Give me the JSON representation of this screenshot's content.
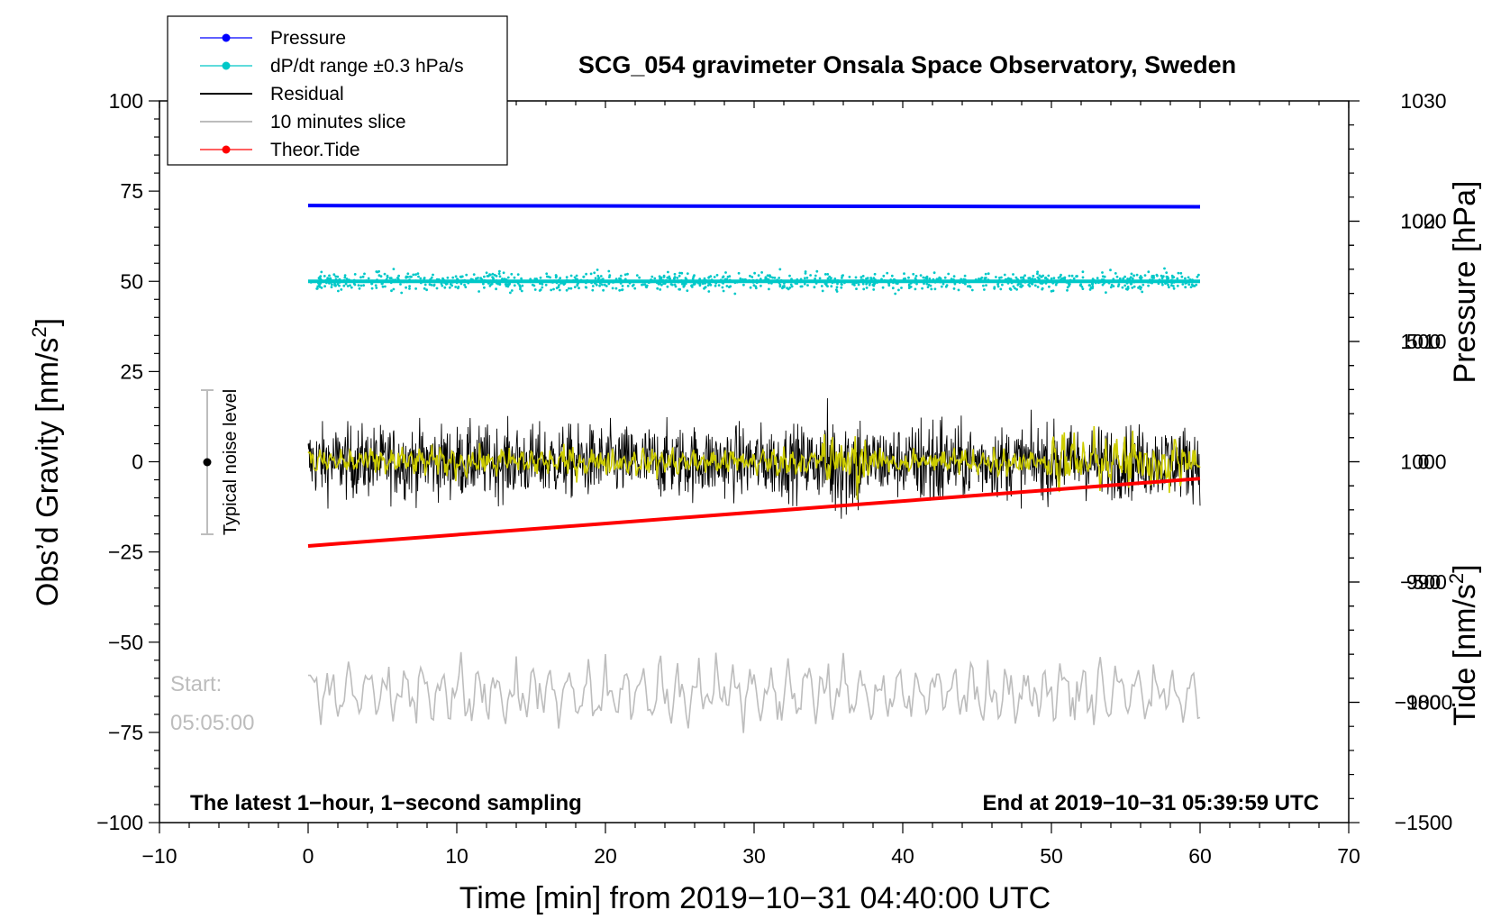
{
  "chart_data": {
    "type": "line",
    "title": "SCG_054 gravimeter Onsala Space Observatory, Sweden",
    "xlabel": "Time [min] from 2019−10−31 04:40:00 UTC",
    "ylabel_left": "Obs’d Gravity [nm/s",
    "ylabel_left_sup": "2",
    "ylabel_left_end": "]",
    "ylabel_right_pressure": "Pressure [hPa]",
    "ylabel_right_tide": "Tide [nm/s",
    "ylabel_right_tide_sup": "2",
    "ylabel_right_tide_end": "]",
    "xlim": [
      -10,
      70
    ],
    "ylim": [
      -100,
      100
    ],
    "pressure_axis": {
      "range": [
        970,
        1030
      ],
      "ticks": [
        "980",
        "990",
        "1000",
        "1010",
        "1020",
        "1030"
      ]
    },
    "tide_axis": {
      "range": [
        -1500,
        1500
      ],
      "ticks": [
        "−1500",
        "−1000",
        "−500",
        "0",
        "500",
        "1000"
      ]
    },
    "x_ticks": [
      {
        "value": -10,
        "label": "−10"
      },
      {
        "value": 0,
        "label": "0"
      },
      {
        "value": 10,
        "label": "10"
      },
      {
        "value": 20,
        "label": "20"
      },
      {
        "value": 30,
        "label": "30"
      },
      {
        "value": 40,
        "label": "40"
      },
      {
        "value": 50,
        "label": "50"
      },
      {
        "value": 60,
        "label": "60"
      },
      {
        "value": 70,
        "label": "70"
      }
    ],
    "y_ticks": [
      {
        "value": 100,
        "label": "100"
      },
      {
        "value": 75,
        "label": "75"
      },
      {
        "value": 50,
        "label": "50"
      },
      {
        "value": 25,
        "label": "25"
      },
      {
        "value": 0,
        "label": "0"
      },
      {
        "value": -25,
        "label": "−25"
      },
      {
        "value": -50,
        "label": "−50"
      },
      {
        "value": -75,
        "label": "−75"
      },
      {
        "value": -100,
        "label": "−100"
      }
    ],
    "legend": [
      {
        "label": "Pressure",
        "color": "#0000ff",
        "marker": true
      },
      {
        "label": "dP/dt range ±0.3 hPa/s",
        "color": "#00c8c8",
        "marker": true
      },
      {
        "label": "Residual",
        "color": "#000000",
        "marker": false
      },
      {
        "label": "10 minutes slice",
        "color": "#bdbdbd",
        "marker": false
      },
      {
        "label": "Theor.Tide",
        "color": "#ff0000",
        "marker": true
      }
    ],
    "series": [
      {
        "name": "Pressure",
        "unit": "hPa",
        "x_range": [
          0,
          60
        ],
        "start": 1021.3,
        "end": 1021.2,
        "color": "#0000ff"
      },
      {
        "name": "dP/dt range ±0.3 hPa/s",
        "unit": "nm/s2",
        "x_range": [
          0,
          60
        ],
        "center": 50,
        "spread": 4.5,
        "color": "#00c8c8"
      },
      {
        "name": "Residual",
        "unit": "nm/s2",
        "x_range": [
          0,
          60
        ],
        "center": 0,
        "min": -24,
        "max": 24,
        "color": "#000000"
      },
      {
        "name": "Residual (smoothed)",
        "unit": "nm/s2",
        "x_range": [
          0,
          60
        ],
        "center": 0,
        "amplitude": 5,
        "color": "#cccc00"
      },
      {
        "name": "10 minutes slice",
        "unit": "nm/s2",
        "x_range": [
          0,
          60
        ],
        "center": -64,
        "min": -81,
        "max": -51,
        "color": "#bdbdbd"
      },
      {
        "name": "Theor.Tide",
        "unit": "nm/s2 (tide axis)",
        "x_range": [
          0,
          60
        ],
        "start": -350,
        "end": -70,
        "color": "#ff0000"
      }
    ],
    "noise_level": {
      "label": "Typical noise level",
      "x": -7,
      "center": 0,
      "half_range": 20
    },
    "start_label_line1": "Start:",
    "start_label_line2": "05:05:00",
    "footer_left": "The latest 1−hour, 1−second sampling",
    "footer_right": "End at 2019−10−31 05:39:59 UTC"
  }
}
